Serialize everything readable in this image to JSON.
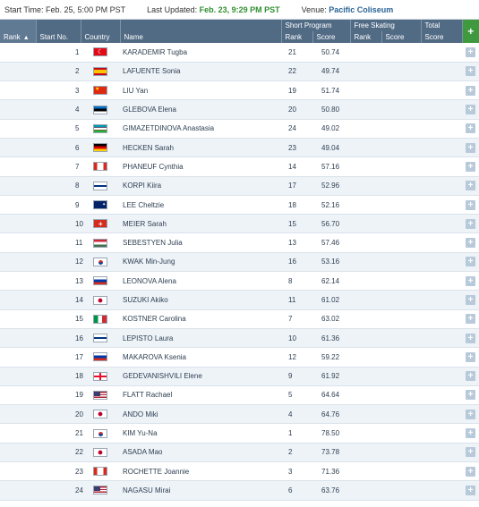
{
  "infobar": {
    "start_label": "Start Time:",
    "start_value": "Feb. 25, 5:00 PM PST",
    "updated_label": "Last Updated:",
    "updated_value": "Feb. 23, 9:29 PM PST",
    "venue_label": "Venue:",
    "venue_value": "Pacific Coliseum"
  },
  "headers": {
    "rank": "Rank",
    "start_no": "Start No.",
    "country": "Country",
    "name": "Name",
    "short_program": "Short Program",
    "sp_rank": "Rank",
    "sp_score": "Score",
    "free_skating": "Free Skating",
    "fs_rank": "Rank",
    "fs_score": "Score",
    "total": "Total",
    "total_score": "Score",
    "add": "+"
  },
  "colors": {
    "header_bg": "#526b85",
    "plus_header_bg": "#3f9a3f",
    "row_alt_bg": "#eef3f8",
    "green_text": "#2f8f2f",
    "blue_text": "#2a6496"
  },
  "rows": [
    {
      "start": "1",
      "flag": "TUR",
      "name": "KARADEMIR Tugba",
      "sp_rank": "21",
      "sp_score": "50.74"
    },
    {
      "start": "2",
      "flag": "ESP",
      "name": "LAFUENTE Sonia",
      "sp_rank": "22",
      "sp_score": "49.74"
    },
    {
      "start": "3",
      "flag": "CHN",
      "name": "LIU Yan",
      "sp_rank": "19",
      "sp_score": "51.74"
    },
    {
      "start": "4",
      "flag": "EST",
      "name": "GLEBOVA Elena",
      "sp_rank": "20",
      "sp_score": "50.80"
    },
    {
      "start": "5",
      "flag": "UZB",
      "name": "GIMAZETDINOVA Anastasia",
      "sp_rank": "24",
      "sp_score": "49.02"
    },
    {
      "start": "6",
      "flag": "GER",
      "name": "HECKEN Sarah",
      "sp_rank": "23",
      "sp_score": "49.04"
    },
    {
      "start": "7",
      "flag": "CAN",
      "name": "PHANEUF Cynthia",
      "sp_rank": "14",
      "sp_score": "57.16"
    },
    {
      "start": "8",
      "flag": "FIN",
      "name": "KORPI Kiira",
      "sp_rank": "17",
      "sp_score": "52.96"
    },
    {
      "start": "9",
      "flag": "AUS",
      "name": "LEE Cheltzie",
      "sp_rank": "18",
      "sp_score": "52.16"
    },
    {
      "start": "10",
      "flag": "SUI",
      "name": "MEIER Sarah",
      "sp_rank": "15",
      "sp_score": "56.70"
    },
    {
      "start": "11",
      "flag": "HUN",
      "name": "SEBESTYEN Julia",
      "sp_rank": "13",
      "sp_score": "57.46"
    },
    {
      "start": "12",
      "flag": "KOR",
      "name": "KWAK Min-Jung",
      "sp_rank": "16",
      "sp_score": "53.16"
    },
    {
      "start": "13",
      "flag": "RUS",
      "name": "LEONOVA Alena",
      "sp_rank": "8",
      "sp_score": "62.14"
    },
    {
      "start": "14",
      "flag": "JPN",
      "name": "SUZUKI Akiko",
      "sp_rank": "11",
      "sp_score": "61.02"
    },
    {
      "start": "15",
      "flag": "ITA",
      "name": "KOSTNER Carolina",
      "sp_rank": "7",
      "sp_score": "63.02"
    },
    {
      "start": "16",
      "flag": "FIN",
      "name": "LEPISTO Laura",
      "sp_rank": "10",
      "sp_score": "61.36"
    },
    {
      "start": "17",
      "flag": "RUS",
      "name": "MAKAROVA Ksenia",
      "sp_rank": "12",
      "sp_score": "59.22"
    },
    {
      "start": "18",
      "flag": "GEO",
      "name": "GEDEVANISHVILI Elene",
      "sp_rank": "9",
      "sp_score": "61.92"
    },
    {
      "start": "19",
      "flag": "USA",
      "name": "FLATT Rachael",
      "sp_rank": "5",
      "sp_score": "64.64"
    },
    {
      "start": "20",
      "flag": "JPN",
      "name": "ANDO Miki",
      "sp_rank": "4",
      "sp_score": "64.76"
    },
    {
      "start": "21",
      "flag": "KOR",
      "name": "KIM Yu-Na",
      "sp_rank": "1",
      "sp_score": "78.50"
    },
    {
      "start": "22",
      "flag": "JPN",
      "name": "ASADA Mao",
      "sp_rank": "2",
      "sp_score": "73.78"
    },
    {
      "start": "23",
      "flag": "CAN",
      "name": "ROCHETTE Joannie",
      "sp_rank": "3",
      "sp_score": "71.36"
    },
    {
      "start": "24",
      "flag": "USA",
      "name": "NAGASU Mirai",
      "sp_rank": "6",
      "sp_score": "63.76"
    }
  ]
}
